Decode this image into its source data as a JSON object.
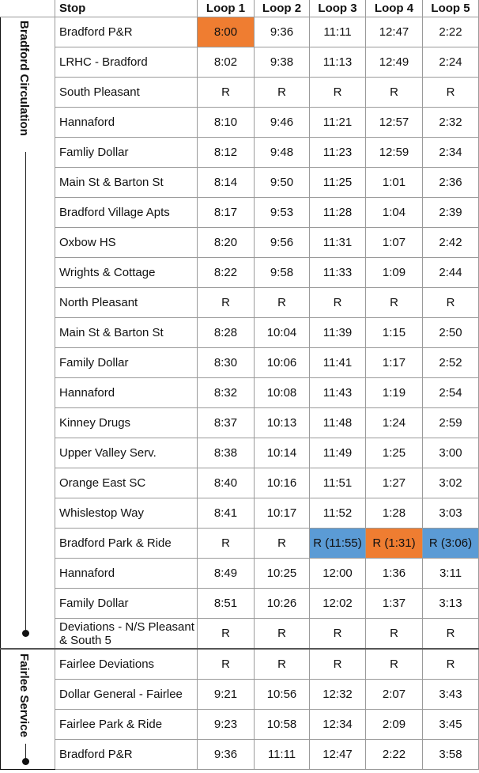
{
  "header": {
    "stop": "Stop",
    "loops": [
      "Loop 1",
      "Loop 2",
      "Loop 3",
      "Loop 4",
      "Loop 5"
    ]
  },
  "sections": [
    {
      "label": "Bradford Circulation",
      "rows": [
        {
          "stop": "Bradford P&R",
          "times": [
            "8:00",
            "9:36",
            "11:11",
            "12:47",
            "2:22"
          ]
        },
        {
          "stop": "LRHC - Bradford",
          "times": [
            "8:02",
            "9:38",
            "11:13",
            "12:49",
            "2:24"
          ]
        },
        {
          "stop": "South Pleasant",
          "times": [
            "R",
            "R",
            "R",
            "R",
            "R"
          ]
        },
        {
          "stop": "Hannaford",
          "times": [
            "8:10",
            "9:46",
            "11:21",
            "12:57",
            "2:32"
          ]
        },
        {
          "stop": "Famliy Dollar",
          "times": [
            "8:12",
            "9:48",
            "11:23",
            "12:59",
            "2:34"
          ]
        },
        {
          "stop": "Main St & Barton St",
          "times": [
            "8:14",
            "9:50",
            "11:25",
            "1:01",
            "2:36"
          ]
        },
        {
          "stop": "Bradford Village Apts",
          "times": [
            "8:17",
            "9:53",
            "11:28",
            "1:04",
            "2:39"
          ]
        },
        {
          "stop": "Oxbow HS",
          "times": [
            "8:20",
            "9:56",
            "11:31",
            "1:07",
            "2:42"
          ]
        },
        {
          "stop": "Wrights & Cottage",
          "times": [
            "8:22",
            "9:58",
            "11:33",
            "1:09",
            "2:44"
          ]
        },
        {
          "stop": "North Pleasant",
          "times": [
            "R",
            "R",
            "R",
            "R",
            "R"
          ]
        },
        {
          "stop": "Main St & Barton St",
          "times": [
            "8:28",
            "10:04",
            "11:39",
            "1:15",
            "2:50"
          ]
        },
        {
          "stop": "Family Dollar",
          "times": [
            "8:30",
            "10:06",
            "11:41",
            "1:17",
            "2:52"
          ]
        },
        {
          "stop": "Hannaford",
          "times": [
            "8:32",
            "10:08",
            "11:43",
            "1:19",
            "2:54"
          ]
        },
        {
          "stop": "Kinney Drugs",
          "times": [
            "8:37",
            "10:13",
            "11:48",
            "1:24",
            "2:59"
          ]
        },
        {
          "stop": "Upper Valley Serv.",
          "times": [
            "8:38",
            "10:14",
            "11:49",
            "1:25",
            "3:00"
          ]
        },
        {
          "stop": "Orange East SC",
          "times": [
            "8:40",
            "10:16",
            "11:51",
            "1:27",
            "3:02"
          ]
        },
        {
          "stop": "Whislestop Way",
          "times": [
            "8:41",
            "10:17",
            "11:52",
            "1:28",
            "3:03"
          ]
        },
        {
          "stop": "Bradford Park & Ride",
          "times": [
            "R",
            "R",
            "R (11:55)",
            "R (1:31)",
            "R (3:06)"
          ]
        },
        {
          "stop": "Hannaford",
          "times": [
            "8:49",
            "10:25",
            "12:00",
            "1:36",
            "3:11"
          ]
        },
        {
          "stop": "Family Dollar",
          "times": [
            "8:51",
            "10:26",
            "12:02",
            "1:37",
            "3:13"
          ]
        },
        {
          "stop": "Deviations - N/S Pleasant & South 5",
          "times": [
            "R",
            "R",
            "R",
            "R",
            "R"
          ]
        }
      ]
    },
    {
      "label": "Fairlee Service",
      "rows": [
        {
          "stop": "Fairlee Deviations",
          "times": [
            "R",
            "R",
            "R",
            "R",
            "R"
          ]
        },
        {
          "stop": "Dollar General - Fairlee",
          "times": [
            "9:21",
            "10:56",
            "12:32",
            "2:07",
            "3:43"
          ]
        },
        {
          "stop": "Fairlee Park & Ride",
          "times": [
            "9:23",
            "10:58",
            "12:34",
            "2:09",
            "3:45"
          ]
        },
        {
          "stop": "Bradford P&R",
          "times": [
            "9:36",
            "11:11",
            "12:47",
            "2:22",
            "3:58"
          ]
        }
      ]
    }
  ],
  "highlight_colors": {
    "orange": "#ef7d31",
    "blue": "#5b9bd5"
  }
}
